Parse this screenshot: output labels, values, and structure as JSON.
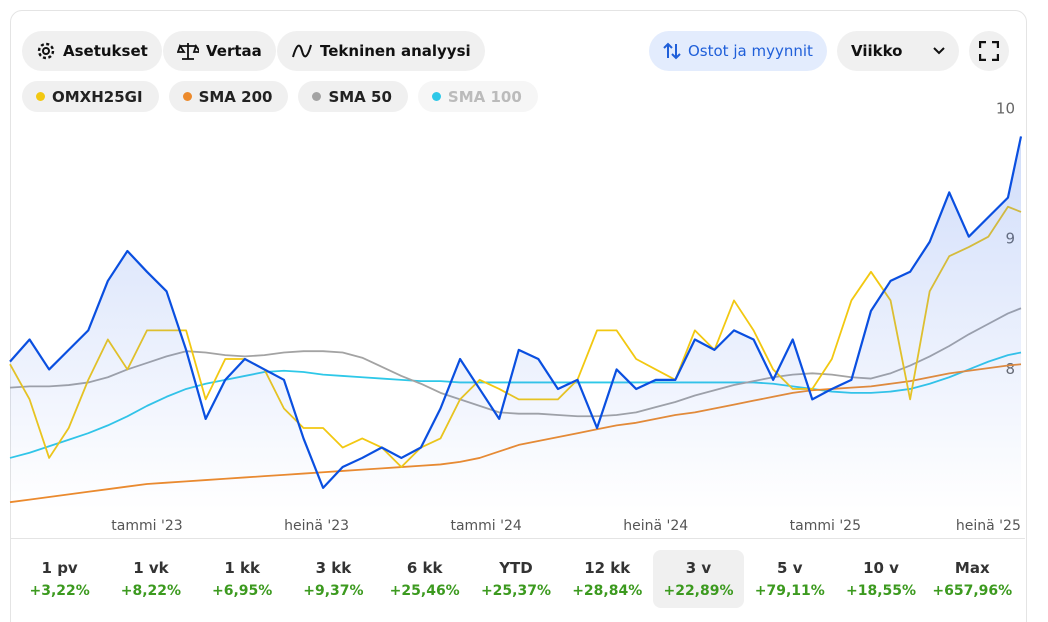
{
  "toolbar": {
    "settings": "Asetukset",
    "compare": "Vertaa",
    "technical": "Tekninen analyysi",
    "trades": "Ostot ja myynnit",
    "interval": "Viikko"
  },
  "chart_data": {
    "type": "line",
    "x": [
      0,
      3,
      6,
      9,
      12,
      15,
      18,
      21,
      24,
      27,
      30,
      33,
      36,
      39,
      42,
      45,
      48,
      51,
      54,
      57,
      60,
      63,
      66,
      69,
      72,
      75,
      78,
      81,
      84,
      87,
      90,
      93,
      96,
      99,
      102,
      105,
      108,
      111,
      114,
      117,
      120,
      123,
      126,
      129,
      132,
      135,
      138,
      141,
      144,
      147,
      150,
      153,
      155
    ],
    "xlim": [
      0,
      155
    ],
    "xticks": [
      {
        "value": 21,
        "label": "tammi '23"
      },
      {
        "value": 47,
        "label": "heinä '23"
      },
      {
        "value": 73,
        "label": "tammi '24"
      },
      {
        "value": 99,
        "label": "heinä '24"
      },
      {
        "value": 125,
        "label": "tammi '25"
      },
      {
        "value": 150,
        "label": "heinä '25"
      }
    ],
    "ylim": [
      6.95,
      10.1
    ],
    "yticks": [
      8,
      9,
      10
    ],
    "series": [
      {
        "color": "#0a4fe0",
        "values": [
          8.09,
          8.26,
          8.03,
          8.18,
          8.33,
          8.71,
          8.94,
          8.78,
          8.63,
          8.18,
          7.65,
          7.95,
          8.11,
          8.03,
          7.95,
          7.5,
          7.12,
          7.28,
          7.35,
          7.43,
          7.35,
          7.43,
          7.73,
          8.11,
          7.88,
          7.65,
          8.18,
          8.11,
          7.88,
          7.95,
          7.58,
          8.03,
          7.88,
          7.95,
          7.95,
          8.26,
          8.18,
          8.33,
          8.26,
          7.95,
          8.26,
          7.8,
          7.88,
          7.95,
          8.48,
          8.71,
          8.78,
          9.01,
          9.39,
          9.05,
          9.2,
          9.35,
          9.82
        ]
      },
      {
        "name": "OMXH25GI",
        "color": "#f2c811",
        "values": [
          8.07,
          7.8,
          7.35,
          7.58,
          7.95,
          8.26,
          8.03,
          8.33,
          8.33,
          8.33,
          7.8,
          8.11,
          8.11,
          8.03,
          7.73,
          7.58,
          7.58,
          7.43,
          7.5,
          7.43,
          7.28,
          7.43,
          7.5,
          7.8,
          7.95,
          7.88,
          7.8,
          7.8,
          7.8,
          7.95,
          8.33,
          8.33,
          8.11,
          8.03,
          7.95,
          8.33,
          8.18,
          8.56,
          8.33,
          8.03,
          7.88,
          7.88,
          8.11,
          8.56,
          8.78,
          8.56,
          7.8,
          8.63,
          8.9,
          8.97,
          9.05,
          9.28,
          9.24
        ]
      },
      {
        "name": "SMA 200",
        "color": "#ec8a2c",
        "values": [
          7.01,
          7.03,
          7.05,
          7.07,
          7.09,
          7.11,
          7.13,
          7.15,
          7.16,
          7.17,
          7.18,
          7.19,
          7.2,
          7.21,
          7.22,
          7.23,
          7.24,
          7.25,
          7.26,
          7.27,
          7.28,
          7.29,
          7.3,
          7.32,
          7.35,
          7.4,
          7.45,
          7.48,
          7.51,
          7.54,
          7.57,
          7.6,
          7.62,
          7.65,
          7.68,
          7.7,
          7.73,
          7.76,
          7.79,
          7.82,
          7.85,
          7.87,
          7.88,
          7.89,
          7.9,
          7.92,
          7.94,
          7.97,
          8.0,
          8.02,
          8.04,
          8.06,
          8.07
        ]
      },
      {
        "name": "SMA 50",
        "color": "#a3a3a3",
        "values": [
          7.89,
          7.9,
          7.9,
          7.91,
          7.93,
          7.97,
          8.03,
          8.08,
          8.13,
          8.17,
          8.16,
          8.14,
          8.13,
          8.14,
          8.16,
          8.17,
          8.17,
          8.16,
          8.12,
          8.05,
          7.98,
          7.92,
          7.85,
          7.8,
          7.75,
          7.7,
          7.69,
          7.69,
          7.68,
          7.67,
          7.67,
          7.68,
          7.7,
          7.74,
          7.78,
          7.83,
          7.87,
          7.91,
          7.94,
          7.97,
          7.99,
          8.0,
          7.99,
          7.97,
          7.96,
          8.0,
          8.06,
          8.13,
          8.21,
          8.3,
          8.38,
          8.46,
          8.5
        ]
      },
      {
        "name": "SMA 100",
        "color": "#2ec8e8",
        "values": [
          7.35,
          7.39,
          7.44,
          7.49,
          7.54,
          7.6,
          7.67,
          7.75,
          7.82,
          7.88,
          7.92,
          7.95,
          7.98,
          8.01,
          8.02,
          8.01,
          7.99,
          7.98,
          7.97,
          7.96,
          7.95,
          7.94,
          7.94,
          7.93,
          7.93,
          7.93,
          7.93,
          7.93,
          7.93,
          7.93,
          7.93,
          7.93,
          7.93,
          7.93,
          7.93,
          7.93,
          7.93,
          7.93,
          7.93,
          7.92,
          7.9,
          7.88,
          7.86,
          7.85,
          7.85,
          7.86,
          7.88,
          7.92,
          7.97,
          8.03,
          8.09,
          8.14,
          8.16
        ]
      }
    ]
  },
  "periods": [
    {
      "label": "1 pv",
      "change": "+3,22%"
    },
    {
      "label": "1 vk",
      "change": "+8,22%"
    },
    {
      "label": "1 kk",
      "change": "+6,95%"
    },
    {
      "label": "3 kk",
      "change": "+9,37%"
    },
    {
      "label": "6 kk",
      "change": "+25,46%"
    },
    {
      "label": "YTD",
      "change": "+25,37%"
    },
    {
      "label": "12 kk",
      "change": "+28,84%"
    },
    {
      "label": "3 v",
      "change": "+22,89%"
    },
    {
      "label": "5 v",
      "change": "+79,11%"
    },
    {
      "label": "10 v",
      "change": "+18,55%"
    },
    {
      "label": "Max",
      "change": "+657,96%"
    }
  ],
  "selected_period": 7
}
